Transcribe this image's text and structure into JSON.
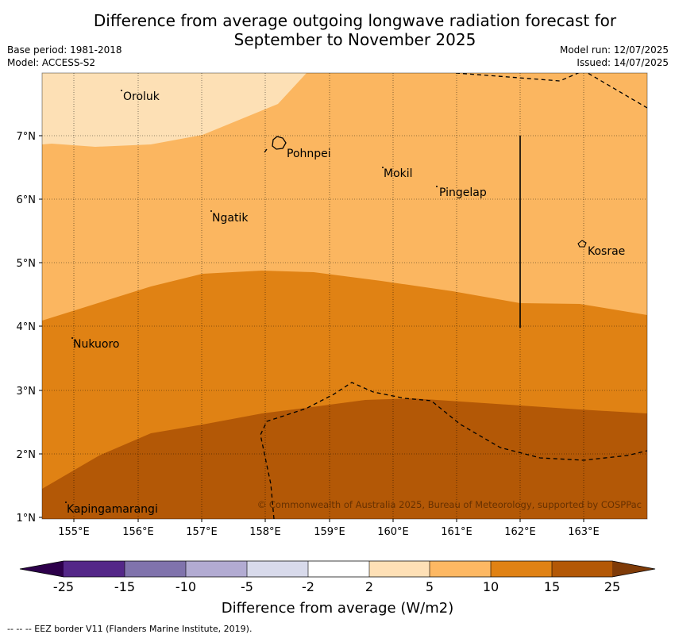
{
  "header": {
    "title_line1": "Difference from average outgoing longwave radiation forecast for",
    "title_line2": "September to November 2025",
    "base_period": "Base period: 1981-2018",
    "model": "Model: ACCESS-S2",
    "model_run": "Model run: 12/07/2025",
    "issued": "Issued: 14/07/2025"
  },
  "map": {
    "lon_labels": [
      "155°E",
      "156°E",
      "157°E",
      "158°E",
      "159°E",
      "160°E",
      "161°E",
      "162°E",
      "163°E"
    ],
    "lat_labels": [
      "7°N",
      "6°N",
      "5°N",
      "4°N",
      "3°N",
      "2°N",
      "1°N"
    ],
    "places": [
      {
        "name": "Oroluk"
      },
      {
        "name": "Pohnpei"
      },
      {
        "name": "Mokil"
      },
      {
        "name": "Pingelap"
      },
      {
        "name": "Ngatik"
      },
      {
        "name": "Kosrae"
      },
      {
        "name": "Nukuoro"
      },
      {
        "name": "Kapingamarangi"
      }
    ],
    "copyright": "© Commonwealth of Australia 2025, Bureau of Meteorology, supported by COSPPac",
    "fill_colors": {
      "band_2_5": "#fde0b5",
      "band_5_10": "#fbb660",
      "band_10_15": "#e08214",
      "band_15_25": "#b35806"
    }
  },
  "colorbar": {
    "tick_labels": [
      "-25",
      "-15",
      "-10",
      "-5",
      "-2",
      "2",
      "5",
      "10",
      "15",
      "25"
    ],
    "colors": [
      "#2d004b",
      "#542788",
      "#8073ac",
      "#b2abd2",
      "#d8daeb",
      "#ffffff",
      "#fee0b6",
      "#fdb863",
      "#e08214",
      "#b35806",
      "#7f3b08"
    ],
    "label": "Difference from average (W/m2)"
  },
  "footnote": "--  --  -- EEZ border V11 (Flanders Marine Institute, 2019)."
}
